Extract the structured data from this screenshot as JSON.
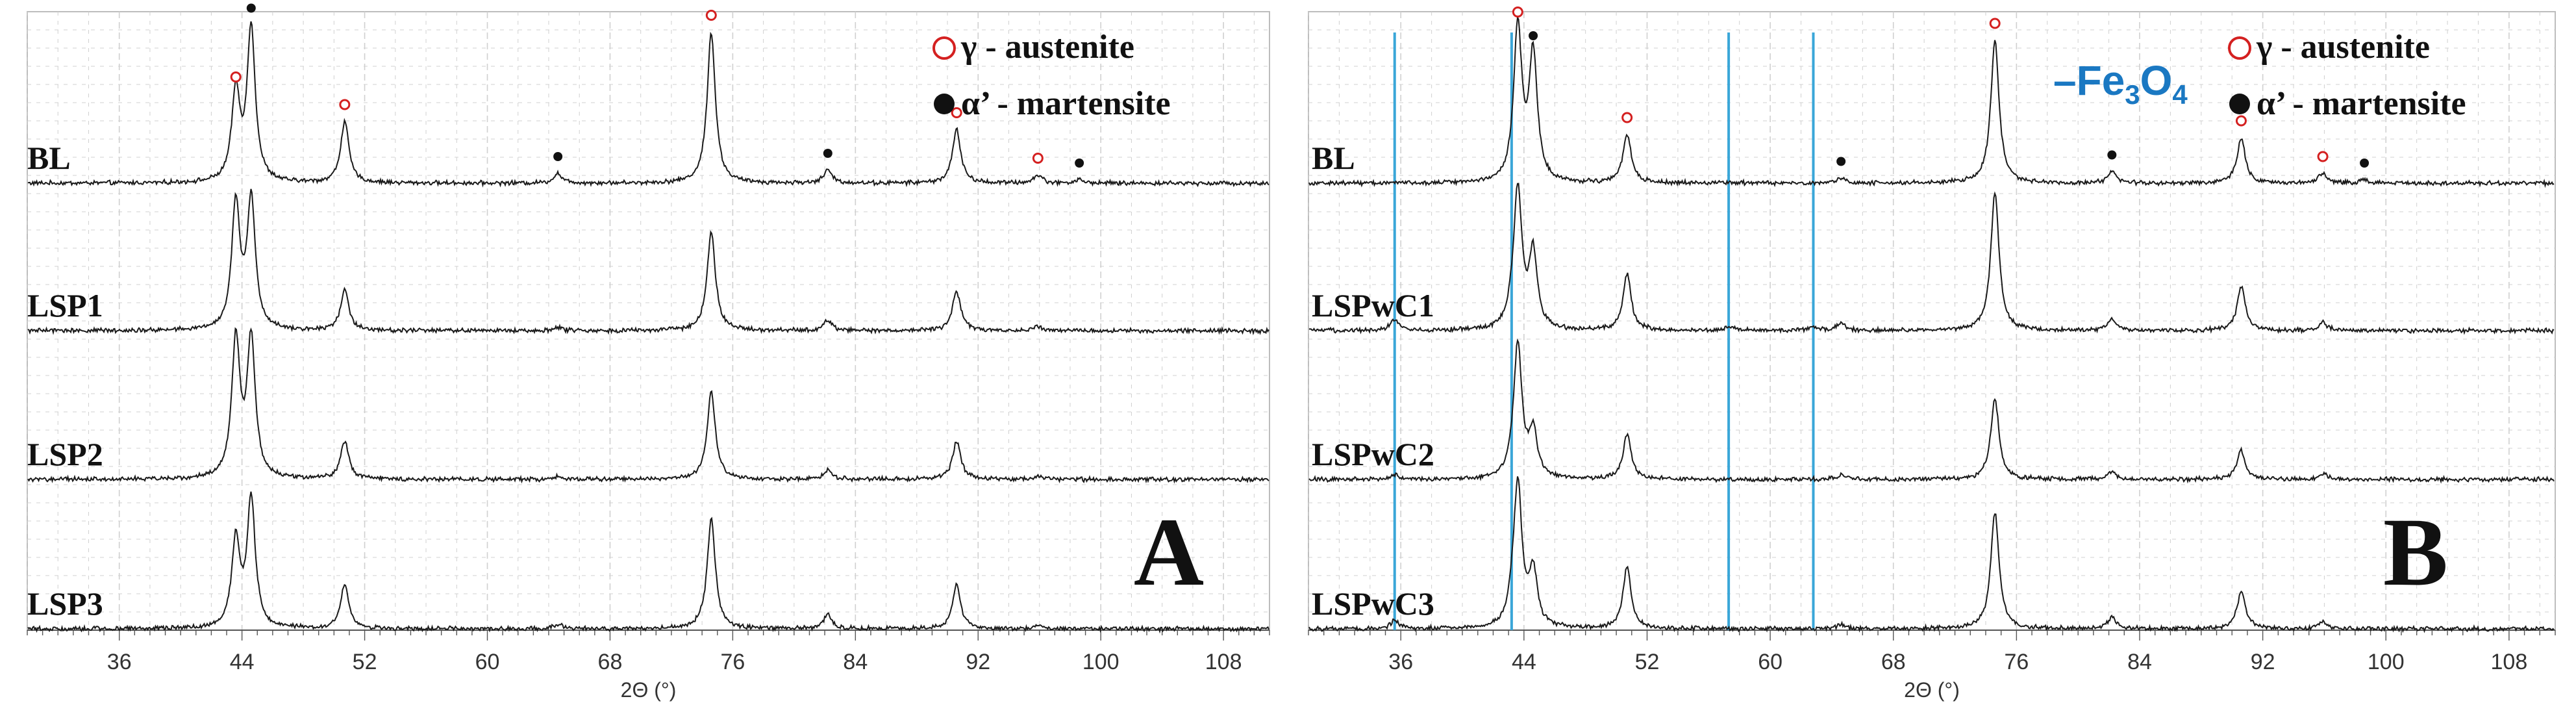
{
  "colors": {
    "trace": "#1a1a1a",
    "austenite_marker": "#d42020",
    "martensite_marker": "#111111",
    "fe3o4_line": "#3aa6d8",
    "fe3o4_label": "#1a78c2",
    "grid": "#d0d0d0",
    "axis": "#555555"
  },
  "legend": {
    "austenite": "γ - austenite",
    "martensite": "α’ - martensite",
    "fe3o4_prefix": "–Fe",
    "fe3o4_sub1": "3",
    "fe3o4_mid": "O",
    "fe3o4_sub2": "4"
  },
  "chart_data": [
    {
      "type": "line",
      "panel_label": "A",
      "xlabel": "2Θ (°)",
      "ylabel": "",
      "xlim": [
        30,
        111
      ],
      "xticks": [
        36,
        44,
        52,
        60,
        68,
        76,
        84,
        92,
        100,
        108
      ],
      "grid": true,
      "legend_position": "top-right",
      "series": [
        {
          "name": "BL",
          "peaks": [
            [
              43.6,
              0.55
            ],
            [
              44.6,
              0.95
            ],
            [
              50.7,
              0.38
            ],
            [
              64.6,
              0.06
            ],
            [
              74.6,
              0.93
            ],
            [
              82.2,
              0.08
            ],
            [
              90.6,
              0.33
            ],
            [
              95.9,
              0.05
            ],
            [
              98.6,
              0.02
            ]
          ]
        },
        {
          "name": "LSP1",
          "peaks": [
            [
              43.6,
              0.86
            ],
            [
              44.6,
              0.88
            ],
            [
              50.7,
              0.28
            ],
            [
              64.6,
              0.02
            ],
            [
              74.6,
              0.68
            ],
            [
              82.2,
              0.07
            ],
            [
              90.6,
              0.27
            ],
            [
              95.9,
              0.03
            ]
          ]
        },
        {
          "name": "LSP2",
          "peaks": [
            [
              43.6,
              0.95
            ],
            [
              44.6,
              0.95
            ],
            [
              50.7,
              0.26
            ],
            [
              64.6,
              0.02
            ],
            [
              74.6,
              0.6
            ],
            [
              82.2,
              0.06
            ],
            [
              90.6,
              0.26
            ],
            [
              95.9,
              0.02
            ]
          ]
        },
        {
          "name": "LSP3",
          "peaks": [
            [
              43.6,
              0.6
            ],
            [
              44.6,
              0.88
            ],
            [
              50.7,
              0.3
            ],
            [
              64.6,
              0.03
            ],
            [
              74.6,
              0.75
            ],
            [
              82.2,
              0.1
            ],
            [
              90.6,
              0.3
            ],
            [
              95.9,
              0.03
            ]
          ]
        }
      ],
      "austenite_markers": [
        43.6,
        50.7,
        74.6,
        90.6,
        95.9
      ],
      "martensite_markers": [
        44.6,
        64.6,
        82.2,
        98.6
      ]
    },
    {
      "type": "line",
      "panel_label": "B",
      "xlabel": "2Θ (°)",
      "ylabel": "",
      "xlim": [
        30,
        111
      ],
      "xticks": [
        36,
        44,
        52,
        60,
        68,
        76,
        84,
        92,
        100,
        108
      ],
      "grid": true,
      "legend_position": "top-right",
      "fe3o4_lines": [
        35.6,
        43.2,
        57.3,
        62.8
      ],
      "series": [
        {
          "name": "BL",
          "peaks": [
            [
              43.6,
              0.95
            ],
            [
              44.6,
              0.78
            ],
            [
              50.7,
              0.3
            ],
            [
              64.6,
              0.03
            ],
            [
              74.6,
              0.88
            ],
            [
              82.2,
              0.07
            ],
            [
              90.6,
              0.28
            ],
            [
              95.9,
              0.06
            ],
            [
              98.6,
              0.02
            ]
          ]
        },
        {
          "name": "LSPwC1",
          "peaks": [
            [
              35.6,
              0.08
            ],
            [
              43.2,
              0.06
            ],
            [
              43.6,
              0.95
            ],
            [
              44.6,
              0.52
            ],
            [
              50.7,
              0.38
            ],
            [
              57.3,
              0.03
            ],
            [
              62.8,
              0.03
            ],
            [
              64.6,
              0.05
            ],
            [
              74.6,
              0.95
            ],
            [
              82.2,
              0.08
            ],
            [
              90.6,
              0.3
            ],
            [
              95.9,
              0.06
            ]
          ]
        },
        {
          "name": "LSPwC2",
          "peaks": [
            [
              35.6,
              0.03
            ],
            [
              43.2,
              0.03
            ],
            [
              43.6,
              0.92
            ],
            [
              44.6,
              0.32
            ],
            [
              50.7,
              0.3
            ],
            [
              64.6,
              0.03
            ],
            [
              74.6,
              0.55
            ],
            [
              82.2,
              0.05
            ],
            [
              90.6,
              0.2
            ],
            [
              95.9,
              0.04
            ]
          ]
        },
        {
          "name": "LSPwC3",
          "peaks": [
            [
              35.6,
              0.06
            ],
            [
              43.2,
              0.08
            ],
            [
              43.6,
              0.98
            ],
            [
              44.6,
              0.38
            ],
            [
              50.7,
              0.42
            ],
            [
              64.6,
              0.03
            ],
            [
              74.6,
              0.8
            ],
            [
              82.2,
              0.08
            ],
            [
              90.6,
              0.26
            ],
            [
              95.9,
              0.05
            ]
          ]
        }
      ],
      "austenite_markers": [
        43.6,
        50.7,
        74.6,
        90.6,
        95.9
      ],
      "martensite_markers": [
        44.6,
        64.6,
        82.2,
        98.6
      ]
    }
  ]
}
